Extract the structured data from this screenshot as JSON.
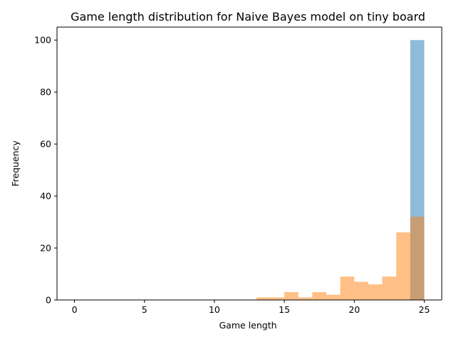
{
  "chart_data": {
    "type": "bar",
    "title": "Game length distribution for Naive Bayes model on tiny board",
    "xlabel": "Game length",
    "ylabel": "Frequency",
    "xlim": [
      -1.25,
      26.25
    ],
    "ylim": [
      0,
      105
    ],
    "xticks": [
      0,
      5,
      10,
      15,
      20,
      25
    ],
    "yticks": [
      0,
      20,
      40,
      60,
      80,
      100
    ],
    "grid": false,
    "bin_edges": [
      0,
      1,
      2,
      3,
      4,
      5,
      6,
      7,
      8,
      9,
      10,
      11,
      12,
      13,
      14,
      15,
      16,
      17,
      18,
      19,
      20,
      21,
      22,
      23,
      24,
      25
    ],
    "series": [
      {
        "color": "#1f77b4",
        "alpha": 0.5,
        "values": [
          0,
          0,
          0,
          0,
          0,
          0,
          0,
          0,
          0,
          0,
          0,
          0,
          0,
          0,
          0,
          0,
          0,
          0,
          0,
          0,
          0,
          0,
          0,
          0,
          100
        ]
      },
      {
        "color": "#ff7f0e",
        "alpha": 0.5,
        "values": [
          0,
          0,
          0,
          0,
          0,
          0,
          0,
          0,
          0,
          0,
          0,
          0,
          0,
          1,
          1,
          3,
          1,
          3,
          2,
          9,
          7,
          6,
          9,
          26,
          32
        ]
      }
    ]
  }
}
